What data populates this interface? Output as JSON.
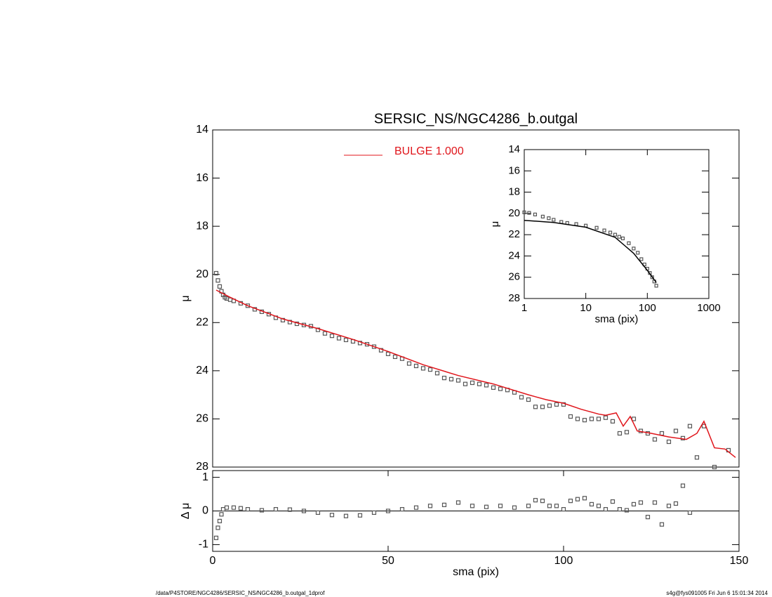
{
  "chart_data": [
    {
      "type": "line",
      "title": "SERSIC_NS/NGC4286_b.outgal",
      "y_label": "μ",
      "xlim": [
        0,
        150
      ],
      "ylim": [
        28,
        14
      ],
      "yticks": [
        14,
        16,
        18,
        20,
        22,
        24,
        26,
        28
      ],
      "series": [
        {
          "style": "markers",
          "color": "#555555",
          "x": [
            1,
            1.5,
            2,
            2.5,
            3,
            3.5,
            4,
            5,
            6,
            8,
            10,
            12,
            14,
            16,
            18,
            20,
            22,
            24,
            26,
            28,
            30,
            32,
            34,
            36,
            38,
            40,
            42,
            44,
            46,
            48,
            50,
            52,
            54,
            56,
            58,
            60,
            62,
            64,
            66,
            68,
            70,
            72,
            74,
            76,
            78,
            80,
            82,
            84,
            86,
            88,
            90,
            92,
            94,
            96,
            98,
            100,
            102,
            104,
            106,
            108,
            110,
            112,
            114,
            116,
            118,
            120,
            122,
            124,
            126,
            128,
            130,
            132,
            134,
            136,
            138,
            140,
            143,
            147
          ],
          "values": [
            19.95,
            20.25,
            20.5,
            20.7,
            20.85,
            20.95,
            21.0,
            21.05,
            21.1,
            21.2,
            21.3,
            21.45,
            21.55,
            21.65,
            21.8,
            21.9,
            21.98,
            22.05,
            22.1,
            22.15,
            22.3,
            22.45,
            22.55,
            22.65,
            22.72,
            22.78,
            22.85,
            22.9,
            23.0,
            23.15,
            23.3,
            23.42,
            23.5,
            23.7,
            23.8,
            23.9,
            23.95,
            24.1,
            24.3,
            24.35,
            24.4,
            24.55,
            24.5,
            24.55,
            24.6,
            24.7,
            24.75,
            24.8,
            24.9,
            25.1,
            25.2,
            25.5,
            25.5,
            25.45,
            25.4,
            25.4,
            25.9,
            26.0,
            26.05,
            26.0,
            26.0,
            25.95,
            26.1,
            26.6,
            26.55,
            26.0,
            26.5,
            26.6,
            26.85,
            26.6,
            26.95,
            26.5,
            26.8,
            26.3,
            27.6,
            26.3,
            28.0,
            27.3
          ]
        },
        {
          "style": "line",
          "color": "#e0151b",
          "name": "BULGE  1.000",
          "x": [
            1,
            5,
            10,
            20,
            30,
            40,
            50,
            60,
            70,
            80,
            90,
            95,
            100,
            105,
            110,
            112,
            115,
            117,
            119,
            121,
            125,
            130,
            135,
            138,
            140,
            143,
            146,
            149
          ],
          "values": [
            20.65,
            20.95,
            21.3,
            21.85,
            22.25,
            22.7,
            23.2,
            23.75,
            24.2,
            24.55,
            25.0,
            25.2,
            25.35,
            25.6,
            25.8,
            25.85,
            25.75,
            26.3,
            25.9,
            26.5,
            26.6,
            26.75,
            26.85,
            26.6,
            26.1,
            27.2,
            27.25,
            27.6
          ]
        }
      ]
    },
    {
      "type": "scatter",
      "x_label": "sma (pix)",
      "y_label": "Δ μ",
      "xlim": [
        0,
        150
      ],
      "xticks": [
        0,
        50,
        100,
        150
      ],
      "ylim": [
        -1.2,
        1.2
      ],
      "yticks": [
        -1,
        0,
        1
      ],
      "hline": 0,
      "series": [
        {
          "style": "markers",
          "color": "#555555",
          "x": [
            1,
            1.5,
            2,
            2.5,
            3,
            4,
            6,
            8,
            10,
            14,
            18,
            22,
            26,
            30,
            34,
            38,
            42,
            46,
            50,
            54,
            58,
            62,
            66,
            70,
            74,
            78,
            82,
            86,
            90,
            92,
            94,
            96,
            98,
            100,
            102,
            104,
            106,
            108,
            110,
            112,
            114,
            116,
            118,
            120,
            122,
            124,
            126,
            128,
            130,
            132,
            134,
            136
          ],
          "values": [
            -0.8,
            -0.5,
            -0.3,
            -0.1,
            0.05,
            0.1,
            0.1,
            0.08,
            0.05,
            0.02,
            0.05,
            0.04,
            0.0,
            -0.05,
            -0.12,
            -0.15,
            -0.13,
            -0.05,
            0.0,
            0.05,
            0.1,
            0.15,
            0.18,
            0.25,
            0.15,
            0.12,
            0.15,
            0.1,
            0.15,
            0.32,
            0.3,
            0.15,
            0.15,
            0.05,
            0.3,
            0.35,
            0.38,
            0.2,
            0.15,
            0.05,
            0.28,
            0.05,
            0.02,
            0.2,
            0.25,
            -0.18,
            0.25,
            -0.4,
            0.15,
            0.22,
            0.75,
            -0.05
          ]
        }
      ]
    },
    {
      "type": "line",
      "x_label": "sma (pix)",
      "y_label": "μ",
      "xlog": true,
      "xlim": [
        1,
        1000
      ],
      "xticks": [
        1,
        10,
        100,
        1000
      ],
      "ylim": [
        28,
        14
      ],
      "yticks": [
        14,
        16,
        18,
        20,
        22,
        24,
        26,
        28
      ],
      "series": [
        {
          "style": "markers",
          "color": "#555555",
          "x": [
            1,
            1.2,
            1.5,
            2,
            2.5,
            3,
            4,
            5,
            7,
            10,
            15,
            20,
            25,
            30,
            35,
            40,
            50,
            60,
            70,
            80,
            90,
            100,
            110,
            120,
            130,
            140
          ],
          "values": [
            19.9,
            19.95,
            20.1,
            20.3,
            20.45,
            20.6,
            20.8,
            20.9,
            21.0,
            21.15,
            21.35,
            21.6,
            21.8,
            22.0,
            22.2,
            22.35,
            22.8,
            23.3,
            23.7,
            24.3,
            24.8,
            25.2,
            25.6,
            26.0,
            26.4,
            26.8
          ]
        },
        {
          "style": "line",
          "color": "#000000",
          "x": [
            1,
            3,
            10,
            30,
            60,
            100,
            140
          ],
          "values": [
            20.65,
            20.85,
            21.3,
            22.25,
            23.75,
            25.35,
            26.5
          ]
        }
      ]
    }
  ],
  "footer": {
    "left": "/data/P4STORE/NGC4286/SERSIC_NS/NGC4286_b.outgal_1dprof",
    "right": "s4g@fys091005  Fri Jun  6 15:01:34 2014"
  }
}
